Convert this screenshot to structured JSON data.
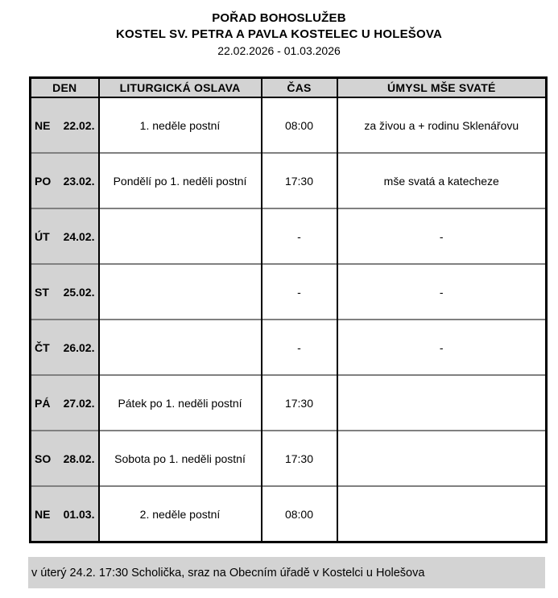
{
  "header": {
    "title": "POŘAD BOHOSLUŽEB",
    "subtitle": "KOSTEL SV. PETRA A PAVLA KOSTELEC U HOLEŠOVA",
    "date_range": "22.02.2026 - 01.03.2026"
  },
  "table": {
    "columns": [
      "DEN",
      "LITURGICKÁ OSLAVA",
      "ČAS",
      "ÚMYSL MŠE SVATÉ"
    ],
    "rows": [
      {
        "day": "NE",
        "date": "22.02.",
        "celebration": "1. neděle postní",
        "time": "08:00",
        "intention": "za živou a + rodinu Sklenářovu"
      },
      {
        "day": "PO",
        "date": "23.02.",
        "celebration": "Pondělí po 1. neděli postní",
        "time": "17:30",
        "intention": "mše svatá a katecheze"
      },
      {
        "day": "ÚT",
        "date": "24.02.",
        "celebration": "",
        "time": "-",
        "intention": "-"
      },
      {
        "day": "ST",
        "date": "25.02.",
        "celebration": "",
        "time": "-",
        "intention": "-"
      },
      {
        "day": "ČT",
        "date": "26.02.",
        "celebration": "",
        "time": "-",
        "intention": "-"
      },
      {
        "day": "PÁ",
        "date": "27.02.",
        "celebration": "Pátek po 1. neděli postní",
        "time": "17:30",
        "intention": ""
      },
      {
        "day": "SO",
        "date": "28.02.",
        "celebration": "Sobota po 1. neděli postní",
        "time": "17:30",
        "intention": ""
      },
      {
        "day": "NE",
        "date": "01.03.",
        "celebration": "2. neděle postní",
        "time": "08:00",
        "intention": ""
      }
    ]
  },
  "footer": {
    "note": "v úterý 24.2. 17:30 Scholička, sraz na Obecním úřadě v Kostelci u Holešova"
  },
  "colors": {
    "cell_gray": "#d3d3d3",
    "border_black": "#000000",
    "row_separator": "#808080"
  }
}
